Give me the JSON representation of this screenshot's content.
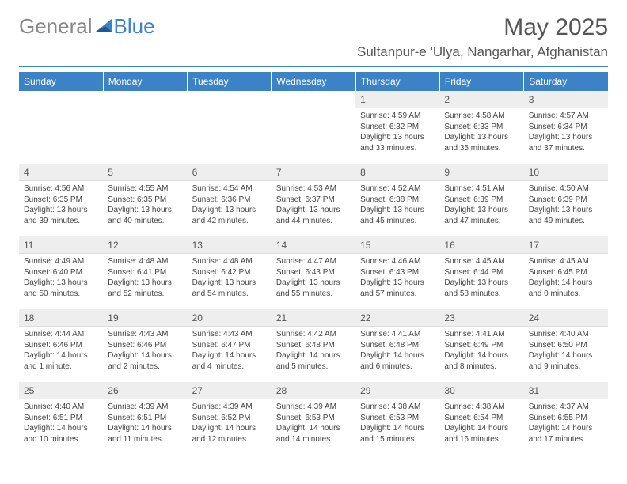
{
  "brand": {
    "part1": "General",
    "part2": "Blue"
  },
  "title": "May 2025",
  "location": "Sultanpur-e 'Ulya, Nangarhar, Afghanistan",
  "colors": {
    "accent": "#3b82c7",
    "header_text": "#ffffff",
    "daynum_bg": "#eeeeee",
    "body_text": "#444444",
    "title_text": "#555555",
    "background": "#ffffff"
  },
  "day_headers": [
    "Sunday",
    "Monday",
    "Tuesday",
    "Wednesday",
    "Thursday",
    "Friday",
    "Saturday"
  ],
  "weeks": [
    [
      {
        "empty": true
      },
      {
        "empty": true
      },
      {
        "empty": true
      },
      {
        "empty": true
      },
      {
        "n": "1",
        "sr": "4:59 AM",
        "ss": "6:32 PM",
        "dl": "13 hours and 33 minutes."
      },
      {
        "n": "2",
        "sr": "4:58 AM",
        "ss": "6:33 PM",
        "dl": "13 hours and 35 minutes."
      },
      {
        "n": "3",
        "sr": "4:57 AM",
        "ss": "6:34 PM",
        "dl": "13 hours and 37 minutes."
      }
    ],
    [
      {
        "n": "4",
        "sr": "4:56 AM",
        "ss": "6:35 PM",
        "dl": "13 hours and 39 minutes."
      },
      {
        "n": "5",
        "sr": "4:55 AM",
        "ss": "6:35 PM",
        "dl": "13 hours and 40 minutes."
      },
      {
        "n": "6",
        "sr": "4:54 AM",
        "ss": "6:36 PM",
        "dl": "13 hours and 42 minutes."
      },
      {
        "n": "7",
        "sr": "4:53 AM",
        "ss": "6:37 PM",
        "dl": "13 hours and 44 minutes."
      },
      {
        "n": "8",
        "sr": "4:52 AM",
        "ss": "6:38 PM",
        "dl": "13 hours and 45 minutes."
      },
      {
        "n": "9",
        "sr": "4:51 AM",
        "ss": "6:39 PM",
        "dl": "13 hours and 47 minutes."
      },
      {
        "n": "10",
        "sr": "4:50 AM",
        "ss": "6:39 PM",
        "dl": "13 hours and 49 minutes."
      }
    ],
    [
      {
        "n": "11",
        "sr": "4:49 AM",
        "ss": "6:40 PM",
        "dl": "13 hours and 50 minutes."
      },
      {
        "n": "12",
        "sr": "4:48 AM",
        "ss": "6:41 PM",
        "dl": "13 hours and 52 minutes."
      },
      {
        "n": "13",
        "sr": "4:48 AM",
        "ss": "6:42 PM",
        "dl": "13 hours and 54 minutes."
      },
      {
        "n": "14",
        "sr": "4:47 AM",
        "ss": "6:43 PM",
        "dl": "13 hours and 55 minutes."
      },
      {
        "n": "15",
        "sr": "4:46 AM",
        "ss": "6:43 PM",
        "dl": "13 hours and 57 minutes."
      },
      {
        "n": "16",
        "sr": "4:45 AM",
        "ss": "6:44 PM",
        "dl": "13 hours and 58 minutes."
      },
      {
        "n": "17",
        "sr": "4:45 AM",
        "ss": "6:45 PM",
        "dl": "14 hours and 0 minutes."
      }
    ],
    [
      {
        "n": "18",
        "sr": "4:44 AM",
        "ss": "6:46 PM",
        "dl": "14 hours and 1 minute."
      },
      {
        "n": "19",
        "sr": "4:43 AM",
        "ss": "6:46 PM",
        "dl": "14 hours and 2 minutes."
      },
      {
        "n": "20",
        "sr": "4:43 AM",
        "ss": "6:47 PM",
        "dl": "14 hours and 4 minutes."
      },
      {
        "n": "21",
        "sr": "4:42 AM",
        "ss": "6:48 PM",
        "dl": "14 hours and 5 minutes."
      },
      {
        "n": "22",
        "sr": "4:41 AM",
        "ss": "6:48 PM",
        "dl": "14 hours and 6 minutes."
      },
      {
        "n": "23",
        "sr": "4:41 AM",
        "ss": "6:49 PM",
        "dl": "14 hours and 8 minutes."
      },
      {
        "n": "24",
        "sr": "4:40 AM",
        "ss": "6:50 PM",
        "dl": "14 hours and 9 minutes."
      }
    ],
    [
      {
        "n": "25",
        "sr": "4:40 AM",
        "ss": "6:51 PM",
        "dl": "14 hours and 10 minutes."
      },
      {
        "n": "26",
        "sr": "4:39 AM",
        "ss": "6:51 PM",
        "dl": "14 hours and 11 minutes."
      },
      {
        "n": "27",
        "sr": "4:39 AM",
        "ss": "6:52 PM",
        "dl": "14 hours and 12 minutes."
      },
      {
        "n": "28",
        "sr": "4:39 AM",
        "ss": "6:53 PM",
        "dl": "14 hours and 14 minutes."
      },
      {
        "n": "29",
        "sr": "4:38 AM",
        "ss": "6:53 PM",
        "dl": "14 hours and 15 minutes."
      },
      {
        "n": "30",
        "sr": "4:38 AM",
        "ss": "6:54 PM",
        "dl": "14 hours and 16 minutes."
      },
      {
        "n": "31",
        "sr": "4:37 AM",
        "ss": "6:55 PM",
        "dl": "14 hours and 17 minutes."
      }
    ]
  ],
  "labels": {
    "sunrise": "Sunrise:",
    "sunset": "Sunset:",
    "daylight": "Daylight:"
  }
}
